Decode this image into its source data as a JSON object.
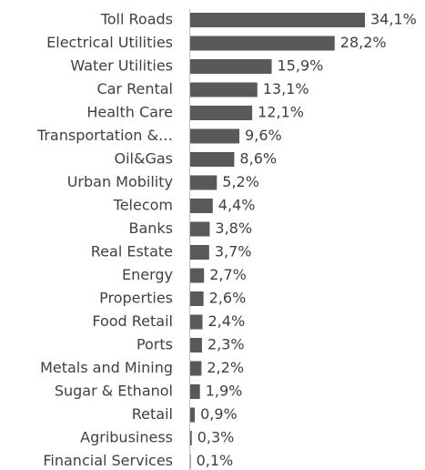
{
  "chart_data": {
    "type": "bar",
    "orientation": "horizontal",
    "color": "#595959",
    "categories": [
      "Toll Roads",
      "Electrical Utilities",
      "Water Utilities",
      "Car Rental",
      "Health Care",
      "Transportation &…",
      "Oil&Gas",
      "Urban Mobility",
      "Telecom",
      "Banks",
      "Real Estate",
      "Energy",
      "Properties",
      "Food Retail",
      "Ports",
      "Metals and Mining",
      "Sugar & Ethanol",
      "Retail",
      "Agribusiness",
      "Financial Services"
    ],
    "values": [
      34.1,
      28.2,
      15.9,
      13.1,
      12.1,
      9.6,
      8.6,
      5.2,
      4.4,
      3.8,
      3.7,
      2.7,
      2.6,
      2.4,
      2.3,
      2.2,
      1.9,
      0.9,
      0.3,
      0.1
    ],
    "value_labels": [
      "34,1%",
      "28,2%",
      "15,9%",
      "13,1%",
      "12,1%",
      "9,6%",
      "8,6%",
      "5,2%",
      "4,4%",
      "3,8%",
      "3,7%",
      "2,7%",
      "2,6%",
      "2,4%",
      "2,3%",
      "2,2%",
      "1,9%",
      "0,9%",
      "0,3%",
      "0,1%"
    ]
  }
}
